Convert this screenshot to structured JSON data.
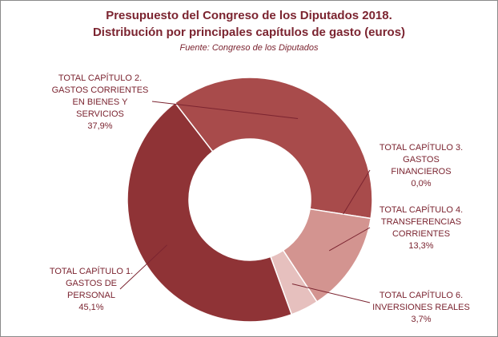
{
  "title_line1": "Presupuesto del Congreso de los Diputados 2018.",
  "title_line2": "Distribución por principales capítulos de gasto (euros)",
  "source": "Fuente:  Congreso de los Diputados",
  "colors": {
    "text": "#7b2430",
    "cap1": "#8f3336",
    "cap2": "#a84b4b",
    "cap3": "#a84b4b",
    "cap4": "#d39490",
    "cap6": "#e6c0be",
    "leader": "#7b2430"
  },
  "chart_data": {
    "type": "pie",
    "donut": true,
    "title": "Presupuesto del Congreso de los Diputados 2018. Distribución por principales capítulos de gasto (euros)",
    "categories": [
      "TOTAL CAPÍTULO 2. GASTOS CORRIENTES EN BIENES Y SERVICIOS",
      "TOTAL CAPÍTULO 3. GASTOS FINANCIEROS",
      "TOTAL CAPÍTULO 4. TRANSFERENCIAS CORRIENTES",
      "TOTAL CAPÍTULO 6. INVERSIONES REALES",
      "TOTAL CAPÍTULO 1. GASTOS DE PERSONAL"
    ],
    "values": [
      37.9,
      0.0,
      13.3,
      3.7,
      45.1
    ],
    "value_labels": [
      "37,9%",
      "0,0%",
      "13,3%",
      "3,7%",
      "45,1%"
    ],
    "legend": "none"
  },
  "labels": {
    "cap2": {
      "lines": [
        "TOTAL CAPÍTULO 2.",
        "GASTOS CORRIENTES",
        "EN BIENES Y",
        "SERVICIOS"
      ],
      "pct": "37,9%"
    },
    "cap3": {
      "lines": [
        "TOTAL CAPÍTULO 3.",
        "GASTOS",
        "FINANCIEROS"
      ],
      "pct": "0,0%"
    },
    "cap4": {
      "lines": [
        "TOTAL CAPÍTULO 4.",
        "TRANSFERENCIAS",
        "CORRIENTES"
      ],
      "pct": "13,3%"
    },
    "cap6": {
      "lines": [
        "TOTAL CAPÍTULO 6.",
        "INVERSIONES REALES"
      ],
      "pct": "3,7%"
    },
    "cap1": {
      "lines": [
        "TOTAL CAPÍTULO 1.",
        "GASTOS DE",
        "PERSONAL"
      ],
      "pct": "45,1%"
    }
  }
}
